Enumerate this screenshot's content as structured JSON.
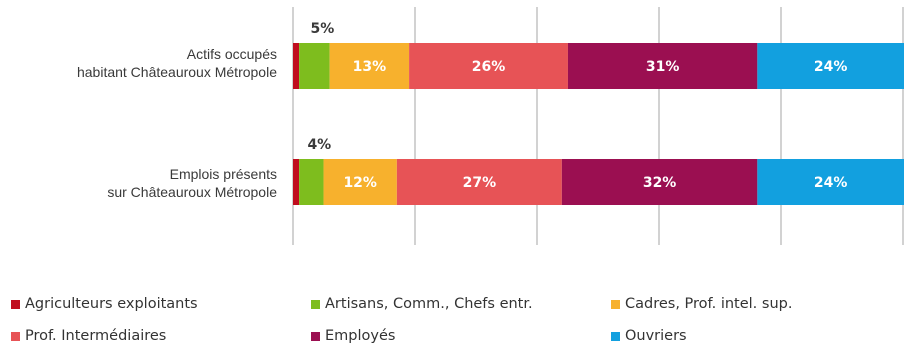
{
  "chart_data": {
    "type": "bar",
    "orientation": "horizontal",
    "stacked": true,
    "percent_stacked": true,
    "grid": true,
    "legend_position": "bottom",
    "categories": [
      [
        "Actifs occupés",
        "habitant Châteauroux Métropole"
      ],
      [
        "Emplois présents",
        "sur Châteauroux Métropole"
      ]
    ],
    "series": [
      {
        "name": "Agriculteurs exploitants",
        "color": "#c00d1e",
        "values": [
          1,
          1
        ],
        "labels": [
          "",
          ""
        ]
      },
      {
        "name": "Artisans, Comm., Chefs entr.",
        "color": "#7ebd1e",
        "values": [
          5,
          4
        ],
        "labels": [
          "5%",
          "4%"
        ]
      },
      {
        "name": "Cadres, Prof. intel. sup.",
        "color": "#f7b12d",
        "values": [
          13,
          12
        ],
        "labels": [
          "13%",
          "12%"
        ]
      },
      {
        "name": "Prof. Intermédiaires",
        "color": "#e75356",
        "values": [
          26,
          27
        ],
        "labels": [
          "26%",
          "27%"
        ]
      },
      {
        "name": "Employés",
        "color": "#9b0f51",
        "values": [
          31,
          32
        ],
        "labels": [
          "31%",
          "32%"
        ]
      },
      {
        "name": "Ouvriers",
        "color": "#12a0df",
        "values": [
          24,
          24
        ],
        "labels": [
          "24%",
          "24%"
        ]
      }
    ]
  }
}
